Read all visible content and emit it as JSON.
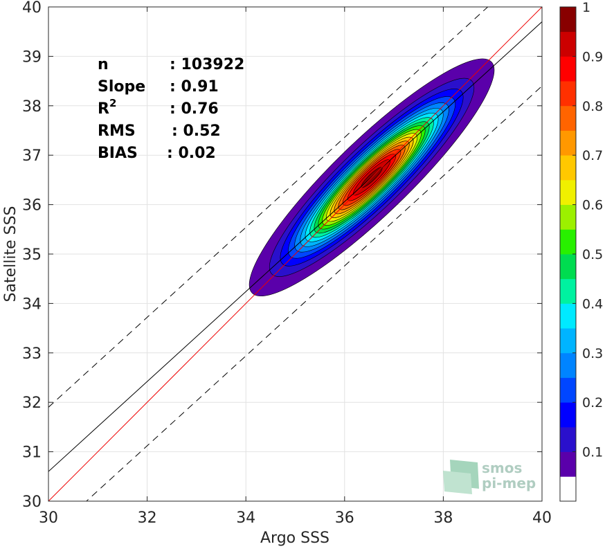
{
  "chart_data": {
    "type": "heatmap",
    "xlabel": "Argo SSS",
    "ylabel": "Satellite SSS",
    "xlim": [
      30,
      40
    ],
    "ylim": [
      30,
      40
    ],
    "x_ticks": [
      "30",
      "32",
      "34",
      "36",
      "38",
      "40"
    ],
    "y_ticks": [
      "30",
      "31",
      "32",
      "33",
      "34",
      "35",
      "36",
      "37",
      "38",
      "39",
      "40"
    ],
    "grid": true,
    "stats": [
      {
        "label": "n",
        "value": ": 103922"
      },
      {
        "label": "Slope",
        "value": ": 0.91"
      },
      {
        "label": "R",
        "sup": "2",
        "value": ": 0.76"
      },
      {
        "label": "RMS",
        "value": ": 0.52"
      },
      {
        "label": "BIAS",
        "value": ": 0.02"
      }
    ],
    "lines": {
      "identity": {
        "slope": 1,
        "intercept": 0,
        "color": "#ee0000"
      },
      "fit": {
        "slope": 0.91,
        "intercept": 3.3,
        "color": "#000000"
      },
      "upper_bound": {
        "slope": 0.91,
        "intercept": 4.6,
        "style": "dashed"
      },
      "lower_bound": {
        "slope": 0.91,
        "intercept": 2.0,
        "style": "dashed"
      }
    },
    "density": {
      "center": [
        36.55,
        36.55
      ],
      "major_axis_angle_deg": 44,
      "major_sigma": 1.25,
      "minor_sigma": 0.28,
      "peak": 1.0
    },
    "colorbar": {
      "range": [
        0,
        1
      ],
      "ticks": [
        "0.1",
        "0.2",
        "0.3",
        "0.4",
        "0.5",
        "0.6",
        "0.7",
        "0.8",
        "0.9",
        "1"
      ],
      "colors": [
        "#ffffff",
        "#5a00aa",
        "#2a10cc",
        "#0000ff",
        "#0046ff",
        "#0084ff",
        "#00b4ff",
        "#00eaff",
        "#00f2a0",
        "#00dc50",
        "#28f000",
        "#9cf000",
        "#f0f000",
        "#ffc800",
        "#ff9800",
        "#ff6400",
        "#ff3000",
        "#ff0000",
        "#cc0000",
        "#880000"
      ]
    },
    "watermark": {
      "line1": "smos",
      "line2": "pi-mep"
    }
  }
}
